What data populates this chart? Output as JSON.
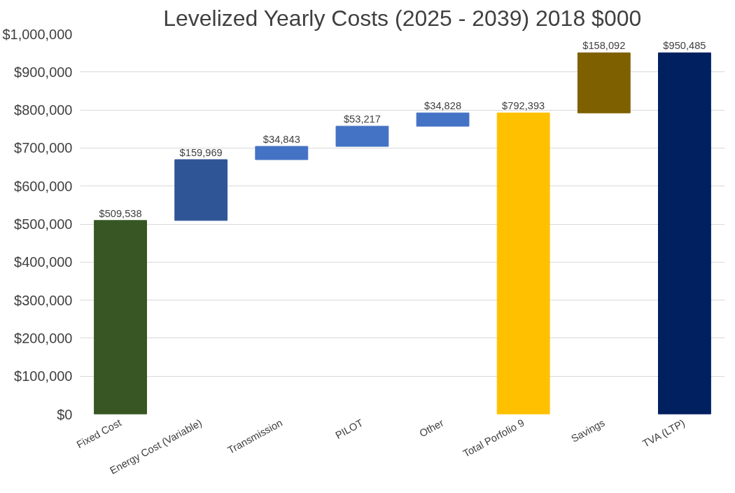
{
  "chart_data": {
    "type": "bar",
    "title": "Levelized Yearly Costs (2025 - 2039) 2018 $000",
    "categories": [
      "Fixed Cost",
      "Energy Cost (Variable)",
      "Transmission",
      "PILOT",
      "Other",
      "Total Porfolio 9",
      "Savings",
      "TVA (LTP)"
    ],
    "values": [
      509538,
      159969,
      34843,
      53217,
      34828,
      792393,
      158092,
      950485
    ],
    "base": [
      0,
      509538,
      669507,
      704350,
      757567,
      0,
      792393,
      0
    ],
    "colors": [
      "#375623",
      "#2f5597",
      "#4472c4",
      "#4472c4",
      "#4472c4",
      "#ffc000",
      "#7f6000",
      "#002060"
    ],
    "value_labels": [
      "$509,538",
      "$159,969",
      "$34,843",
      "$53,217",
      "$34,828",
      "$792,393",
      "$158,092",
      "$950,485"
    ],
    "ylim": [
      0,
      1000000
    ],
    "yticks": [
      {
        "value": 0,
        "label": "$0"
      },
      {
        "value": 100000,
        "label": "$100,000"
      },
      {
        "value": 200000,
        "label": "$200,000"
      },
      {
        "value": 300000,
        "label": "$300,000"
      },
      {
        "value": 400000,
        "label": "$400,000"
      },
      {
        "value": 500000,
        "label": "$500,000"
      },
      {
        "value": 600000,
        "label": "$600,000"
      },
      {
        "value": 700000,
        "label": "$700,000"
      },
      {
        "value": 800000,
        "label": "$800,000"
      },
      {
        "value": 900000,
        "label": "$900,000"
      },
      {
        "value": 1000000,
        "label": "$1,000,000"
      }
    ],
    "grid": "y"
  }
}
